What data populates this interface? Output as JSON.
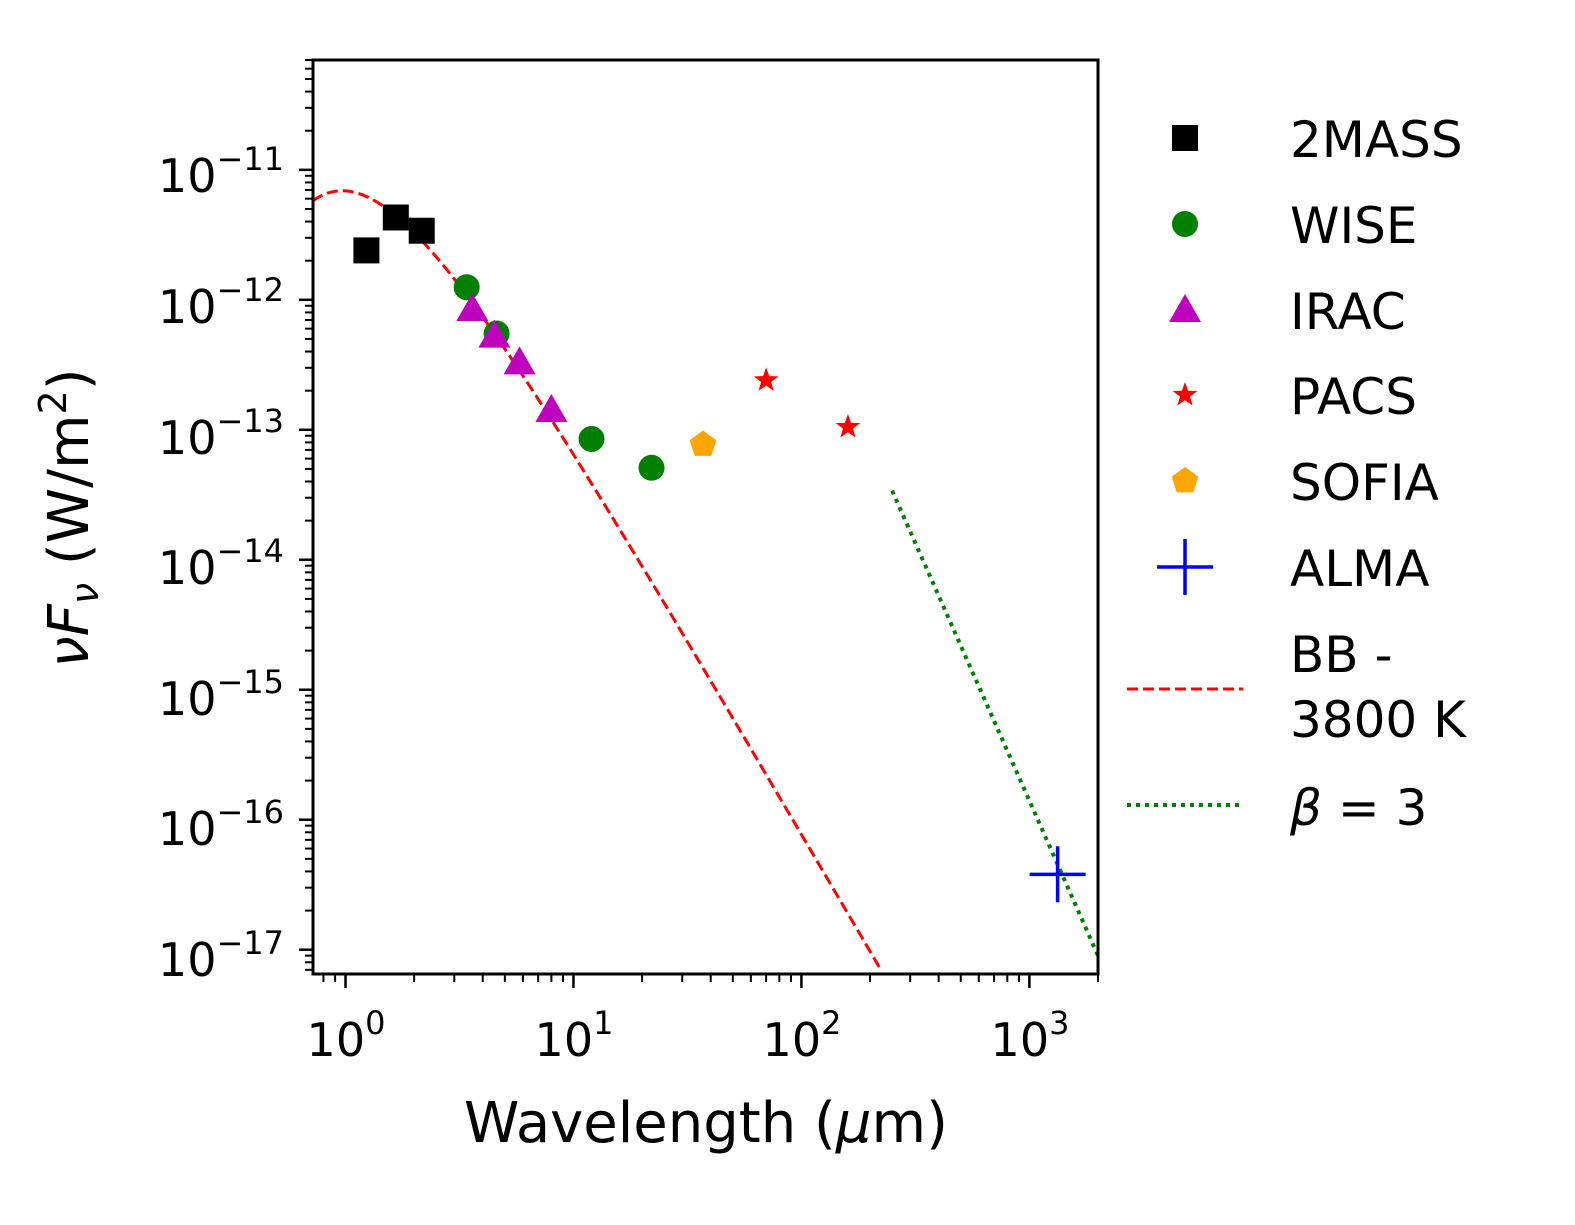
{
  "chart_data": {
    "type": "scatter",
    "title": "",
    "xlabel_main": "Wavelength (",
    "xlabel_mu": "μ",
    "xlabel_unit": "m)",
    "ylabel_nu": "ν",
    "ylabel_F": "F",
    "ylabel_sub": "ν",
    "ylabel_unit": " (W/m",
    "ylabel_exp": "2",
    "ylabel_close": ")",
    "xscale": "log",
    "yscale": "log",
    "xlim": [
      0.72,
      2000
    ],
    "ylim": [
      6.5e-18,
      7e-11
    ],
    "grid": false,
    "x_ticks": [
      {
        "base": "10",
        "exp": "0",
        "value": 1
      },
      {
        "base": "10",
        "exp": "1",
        "value": 10
      },
      {
        "base": "10",
        "exp": "2",
        "value": 100
      },
      {
        "base": "10",
        "exp": "3",
        "value": 1000
      }
    ],
    "y_ticks": [
      {
        "base": "10",
        "exp": "−11",
        "value": 1e-11
      },
      {
        "base": "10",
        "exp": "−12",
        "value": 1e-12
      },
      {
        "base": "10",
        "exp": "−13",
        "value": 1e-13
      },
      {
        "base": "10",
        "exp": "−14",
        "value": 1e-14
      },
      {
        "base": "10",
        "exp": "−15",
        "value": 1e-15
      },
      {
        "base": "10",
        "exp": "−16",
        "value": 1e-16
      },
      {
        "base": "10",
        "exp": "−17",
        "value": 1e-17
      }
    ],
    "series": [
      {
        "name": "2MASS",
        "marker": "square",
        "color": "#000000",
        "x": [
          1.235,
          1.662,
          2.159
        ],
        "y": [
          2.4e-12,
          4.3e-12,
          3.4e-12
        ]
      },
      {
        "name": "WISE",
        "marker": "circle",
        "color": "#008000",
        "x": [
          3.4,
          4.6,
          12,
          22
        ],
        "y": [
          1.25e-12,
          5.5e-13,
          8.5e-14,
          5.1e-14
        ]
      },
      {
        "name": "IRAC",
        "marker": "triangle",
        "color": "#bf00bf",
        "x": [
          3.6,
          4.5,
          5.8,
          8.0
        ],
        "y": [
          8.5e-13,
          5.3e-13,
          3.3e-13,
          1.42e-13
        ]
      },
      {
        "name": "PACS",
        "marker": "star",
        "color": "#ff0000",
        "x": [
          70,
          160
        ],
        "y": [
          2.4e-13,
          1.05e-13
        ]
      },
      {
        "name": "SOFIA",
        "marker": "pentagon",
        "color": "#ffa500",
        "x": [
          37
        ],
        "y": [
          7.7e-14
        ]
      },
      {
        "name": "ALMA",
        "marker": "plus",
        "color": "#0000ff",
        "x": [
          1330
        ],
        "y": [
          3.8e-17
        ]
      }
    ],
    "lines": [
      {
        "name_line1": "BB -",
        "name_line2": "3800 K",
        "style": "dashed",
        "color": "#ff0000",
        "temperature_K": 3800,
        "peak_value": 6.9e-12,
        "x_range": [
          0.72,
          220
        ]
      },
      {
        "name_pre": "β",
        "name_post": " = 3",
        "style": "dotted",
        "color": "#008000",
        "x": [
          250,
          2000
        ],
        "y": [
          3.4e-14,
          9e-18
        ]
      }
    ],
    "legend_position": "outside-right"
  }
}
